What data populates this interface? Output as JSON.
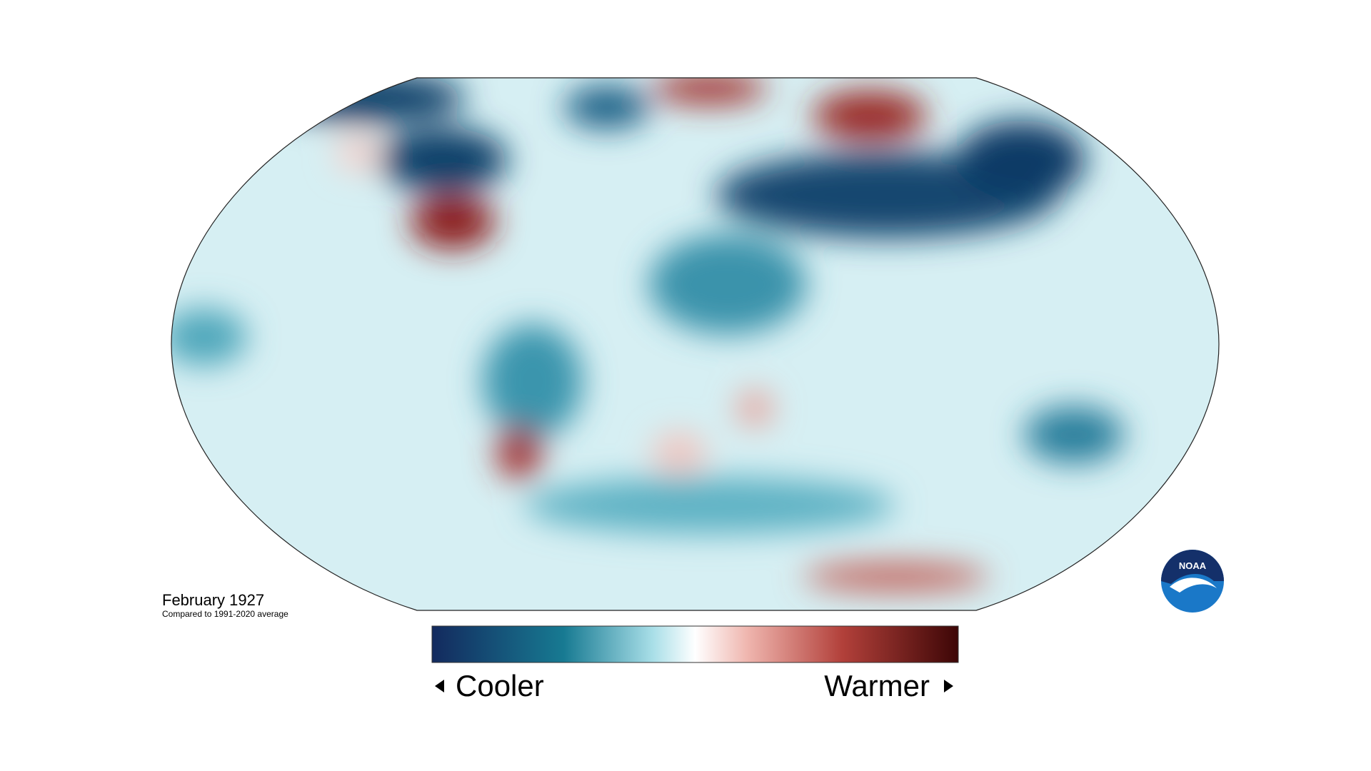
{
  "title": "February 1927",
  "subtitle": "Compared to 1991-2020 average",
  "legend": {
    "low_label": "Cooler",
    "high_label": "Warmer"
  },
  "logo": "NOAA"
}
